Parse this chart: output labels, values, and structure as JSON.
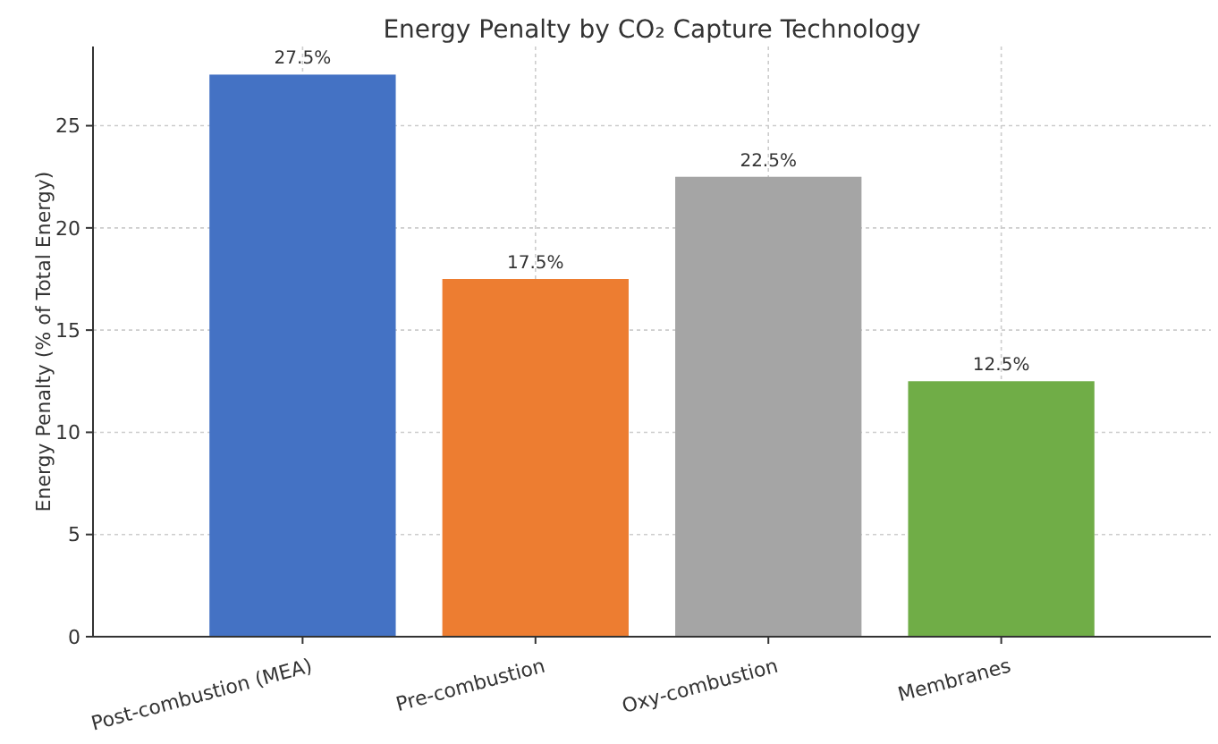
{
  "chart_data": {
    "type": "bar",
    "title": "Energy Penalty by CO₂ Capture Technology",
    "ylabel": "Energy Penalty (% of Total Energy)",
    "categories": [
      "Post-combustion (MEA)",
      "Pre-combustion",
      "Oxy-combustion",
      "Membranes"
    ],
    "values": [
      27.5,
      17.5,
      22.5,
      12.5
    ],
    "colors": [
      "#4472c4",
      "#ed7d31",
      "#a5a5a5",
      "#70ad47"
    ],
    "value_labels": [
      "27.5%",
      "17.5%",
      "22.5%",
      "12.5%"
    ],
    "ylim": [
      0,
      28.875
    ],
    "yticks": [
      0,
      5,
      10,
      15,
      20,
      25
    ],
    "grid": true
  }
}
